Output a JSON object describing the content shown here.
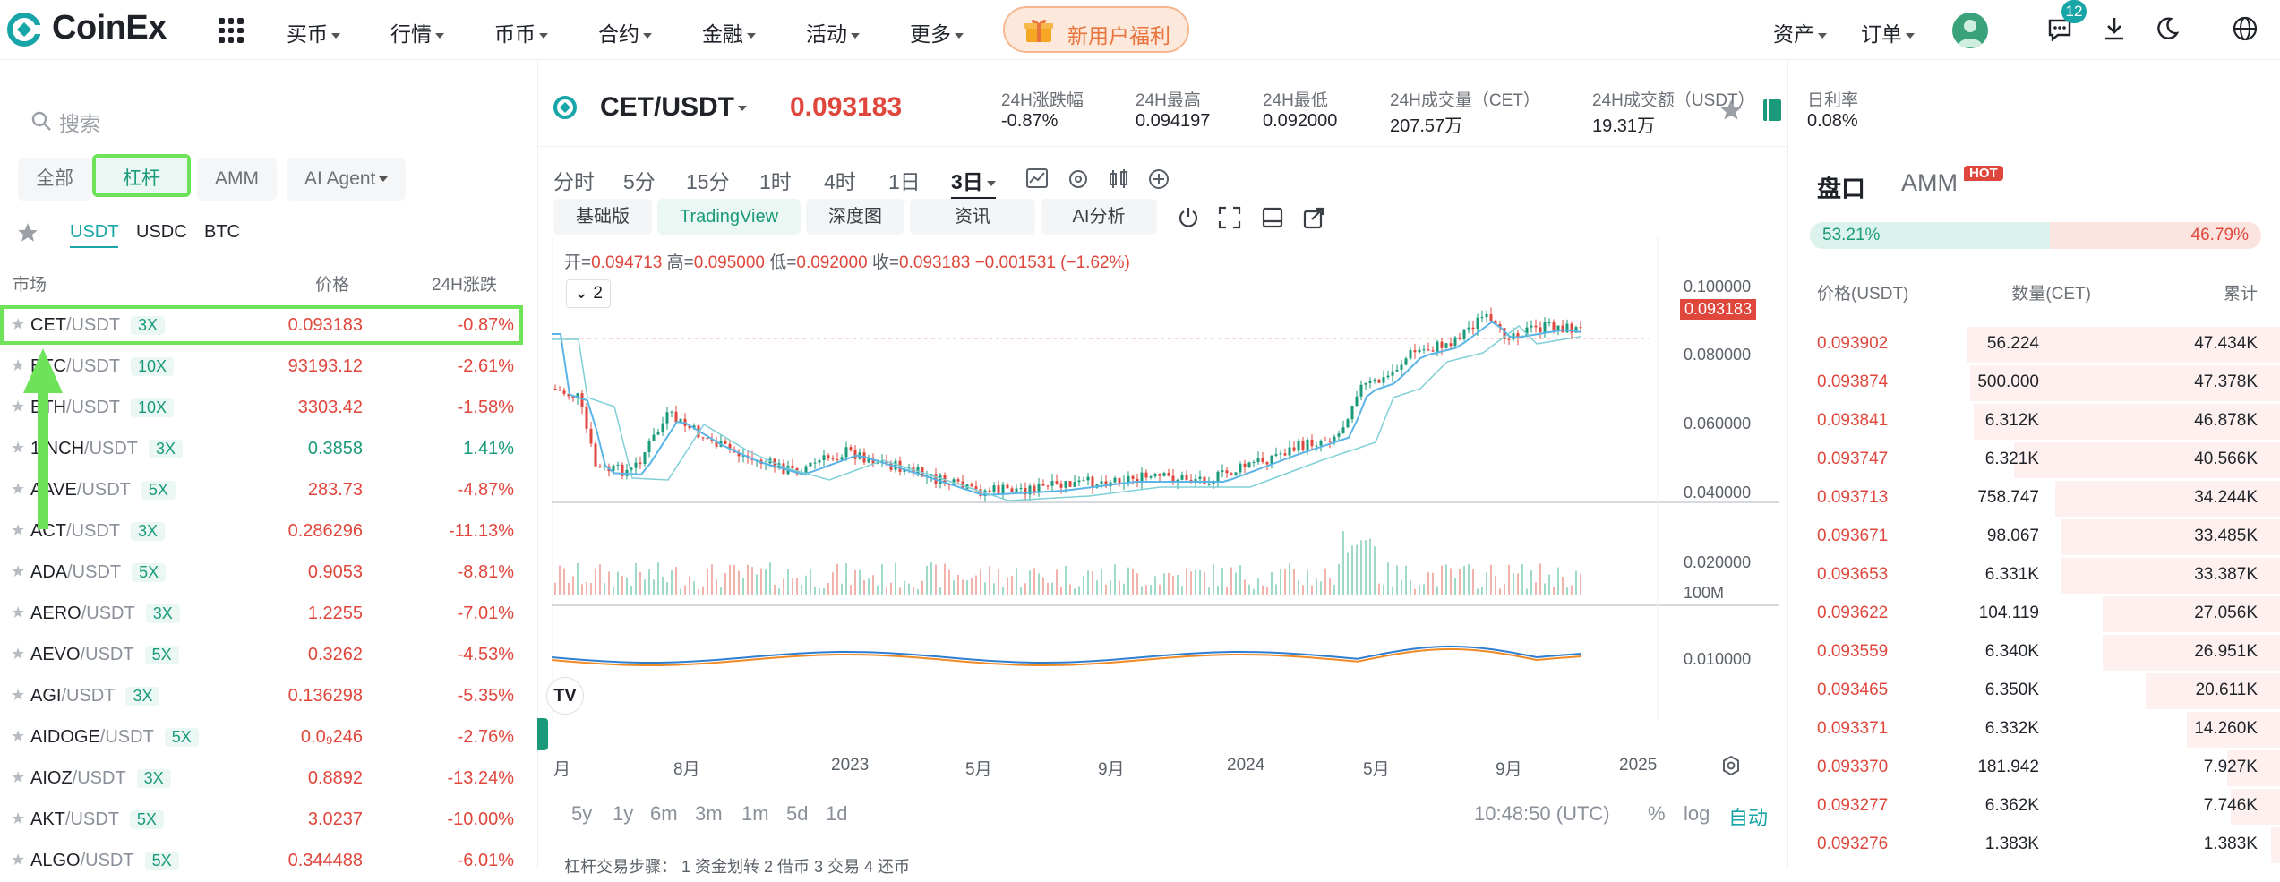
{
  "brand": {
    "name": "CoinEx"
  },
  "nav": {
    "items": [
      "买币",
      "行情",
      "币币",
      "合约",
      "金融",
      "活动",
      "更多"
    ],
    "promo": "新用户福利",
    "right": {
      "assets": "资产",
      "orders": "订单",
      "notifications_count": "12"
    }
  },
  "left": {
    "search_placeholder": "搜索",
    "tabs": [
      "全部",
      "杠杆",
      "AMM",
      "AI Agent"
    ],
    "subtabs": [
      "USDT",
      "USDC",
      "BTC"
    ],
    "columns": {
      "market": "市场",
      "price": "价格",
      "change": "24H涨跌"
    },
    "rows": [
      {
        "base": "CET",
        "quote": "/USDT",
        "lev": "3X",
        "price": "0.093183",
        "change": "-0.87%"
      },
      {
        "base": "BTC",
        "quote": "/USDT",
        "lev": "10X",
        "price": "93193.12",
        "change": "-2.61%"
      },
      {
        "base": "ETH",
        "quote": "/USDT",
        "lev": "10X",
        "price": "3303.42",
        "change": "-1.58%"
      },
      {
        "base": "1INCH",
        "quote": "/USDT",
        "lev": "3X",
        "price": "0.3858",
        "change": "1.41%"
      },
      {
        "base": "AAVE",
        "quote": "/USDT",
        "lev": "5X",
        "price": "283.73",
        "change": "-4.87%"
      },
      {
        "base": "ACT",
        "quote": "/USDT",
        "lev": "3X",
        "price": "0.286296",
        "change": "-11.13%"
      },
      {
        "base": "ADA",
        "quote": "/USDT",
        "lev": "5X",
        "price": "0.9053",
        "change": "-8.81%"
      },
      {
        "base": "AERO",
        "quote": "/USDT",
        "lev": "3X",
        "price": "1.2255",
        "change": "-7.01%"
      },
      {
        "base": "AEVO",
        "quote": "/USDT",
        "lev": "5X",
        "price": "0.3262",
        "change": "-4.53%"
      },
      {
        "base": "AGI",
        "quote": "/USDT",
        "lev": "3X",
        "price": "0.136298",
        "change": "-5.35%"
      },
      {
        "base": "AIDOGE",
        "quote": "/USDT",
        "lev": "5X",
        "price": "0.0₉246",
        "change": "-2.76%"
      },
      {
        "base": "AIOZ",
        "quote": "/USDT",
        "lev": "3X",
        "price": "0.8892",
        "change": "-13.24%"
      },
      {
        "base": "AKT",
        "quote": "/USDT",
        "lev": "5X",
        "price": "3.0237",
        "change": "-10.00%"
      },
      {
        "base": "ALGO",
        "quote": "/USDT",
        "lev": "5X",
        "price": "0.344488",
        "change": "-6.01%"
      }
    ]
  },
  "ticker": {
    "pair": "CET/USDT",
    "last": "0.093183",
    "stats": [
      {
        "label": "24H涨跌幅",
        "value": "-0.87%"
      },
      {
        "label": "24H最高",
        "value": "0.094197"
      },
      {
        "label": "24H最低",
        "value": "0.092000"
      },
      {
        "label": "24H成交量（CET）",
        "value": "207.57万"
      },
      {
        "label": "24H成交额（USDT）",
        "value": "19.31万"
      },
      {
        "label": "日利率",
        "value": "0.08%"
      }
    ]
  },
  "chart": {
    "timeframes": [
      "分时",
      "5分",
      "15分",
      "1时",
      "4时",
      "1日",
      "3日"
    ],
    "active_timeframe": "3日",
    "views": [
      "基础版",
      "TradingView",
      "深度图",
      "资讯",
      "AI分析"
    ],
    "ohlc": {
      "o_label": "开=",
      "o": "0.094713",
      "h_label": "高=",
      "h": "0.095000",
      "l_label": "低=",
      "l": "0.092000",
      "c_label": "收=",
      "c": "0.093183",
      "delta": "−0.001531 (−1.62%)"
    },
    "collapse_count": "2",
    "y_ticks": [
      "0.100000",
      "0.080000",
      "0.060000",
      "0.040000",
      "0.020000"
    ],
    "price_tag": "0.093183",
    "vol_label": "100M",
    "macd_label": "0.010000",
    "x_ticks": [
      "月",
      "8月",
      "2023",
      "5月",
      "9月",
      "2024",
      "5月",
      "9月",
      "2025"
    ],
    "ranges": [
      "5y",
      "1y",
      "6m",
      "3m",
      "1m",
      "5d",
      "1d"
    ],
    "clock": "10:48:50 (UTC)",
    "scale_opts": [
      "%",
      "log",
      "自动"
    ],
    "footer_hint": "杠杆交易步骤：  1 资金划转    2 借币    3 交易    4 还币"
  },
  "orderbook": {
    "tabs": [
      "盘口",
      "AMM"
    ],
    "hot": "HOT",
    "buy_pct": "53.21%",
    "sell_pct": "46.79%",
    "buy_ratio": 0.5321,
    "cols": {
      "price": "价格(USDT)",
      "qty": "数量(CET)",
      "cum": "累计"
    },
    "asks": [
      {
        "p": "0.093902",
        "q": "56.224",
        "c": "47.434K",
        "depth": 1.0
      },
      {
        "p": "0.093874",
        "q": "500.000",
        "c": "47.378K",
        "depth": 0.99
      },
      {
        "p": "0.093841",
        "q": "6.312K",
        "c": "46.878K",
        "depth": 0.98
      },
      {
        "p": "0.093747",
        "q": "6.321K",
        "c": "40.566K",
        "depth": 0.85
      },
      {
        "p": "0.093713",
        "q": "758.747",
        "c": "34.244K",
        "depth": 0.72
      },
      {
        "p": "0.093671",
        "q": "98.067",
        "c": "33.485K",
        "depth": 0.7
      },
      {
        "p": "0.093653",
        "q": "6.331K",
        "c": "33.387K",
        "depth": 0.7
      },
      {
        "p": "0.093622",
        "q": "104.119",
        "c": "27.056K",
        "depth": 0.57
      },
      {
        "p": "0.093559",
        "q": "6.340K",
        "c": "26.951K",
        "depth": 0.57
      },
      {
        "p": "0.093465",
        "q": "6.350K",
        "c": "20.611K",
        "depth": 0.43
      },
      {
        "p": "0.093371",
        "q": "6.332K",
        "c": "14.260K",
        "depth": 0.3
      },
      {
        "p": "0.093370",
        "q": "181.942",
        "c": "7.927K",
        "depth": 0.17
      },
      {
        "p": "0.093277",
        "q": "6.362K",
        "c": "7.746K",
        "depth": 0.16
      },
      {
        "p": "0.093276",
        "q": "1.383K",
        "c": "1.383K",
        "depth": 0.03
      }
    ]
  },
  "colors": {
    "accent": "#18a5a7",
    "red": "#e0473c",
    "green": "#1a9a7a",
    "highlight": "#6ee35a"
  }
}
